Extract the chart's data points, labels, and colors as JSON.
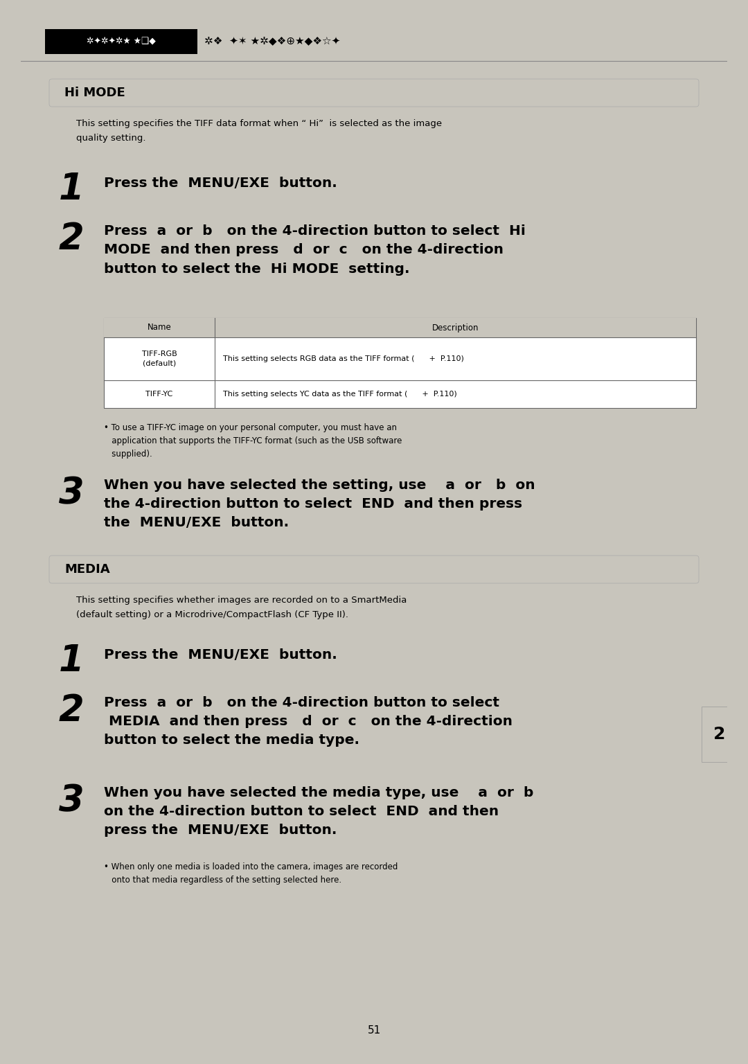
{
  "bg_color": "#c8c5bc",
  "page_bg": "#ffffff",
  "page_number": "51",
  "section_bar_color": "#c8c5bc",
  "section_hi_mode": "Hi MODE",
  "section_media": "MEDIA",
  "hi_mode_intro": "This setting specifies the TIFF data format when “ Hi”  is selected as the image\nquality setting.",
  "step1_hi_text": "Press the  MENU/EXE  button.",
  "step2_hi_text": "Press  a  or  b   on the 4-direction button to select  Hi\nMODE  and then press   d  or  c   on the 4-direction\nbutton to select the  Hi MODE  setting.",
  "table_header_name": "Name",
  "table_header_desc": "Description",
  "table_row1_name": "TIFF-RGB\n(default)",
  "table_row1_desc": "This setting selects RGB data as the TIFF format (      +  P.110)",
  "table_row2_name": "TIFF-YC",
  "table_row2_desc": "This setting selects YC data as the TIFF format (      +  P.110)",
  "table_note": "• To use a TIFF-YC image on your personal computer, you must have an\n   application that supports the TIFF-YC format (such as the USB software\n   supplied).",
  "step3_hi_text": "When you have selected the setting, use    a  or   b  on\nthe 4-direction button to select  END  and then press\nthe  MENU/EXE  button.",
  "media_intro": "This setting specifies whether images are recorded on to a SmartMedia\n(default setting) or a Microdrive/CompactFlash (CF Type II).",
  "step1_media_text": "Press the  MENU/EXE  button.",
  "step2_media_text": "Press  a  or  b   on the 4-direction button to select\n MEDIA  and then press   d  or  c   on the 4-direction\nbutton to select the media type.",
  "step3_media_text": "When you have selected the media type, use    a  or  b\non the 4-direction button to select  END  and then\npress the  MENU/EXE  button.",
  "media_note": "• When only one media is loaded into the camera, images are recorded\n   onto that media regardless of the setting selected here.",
  "tab_text": "2"
}
